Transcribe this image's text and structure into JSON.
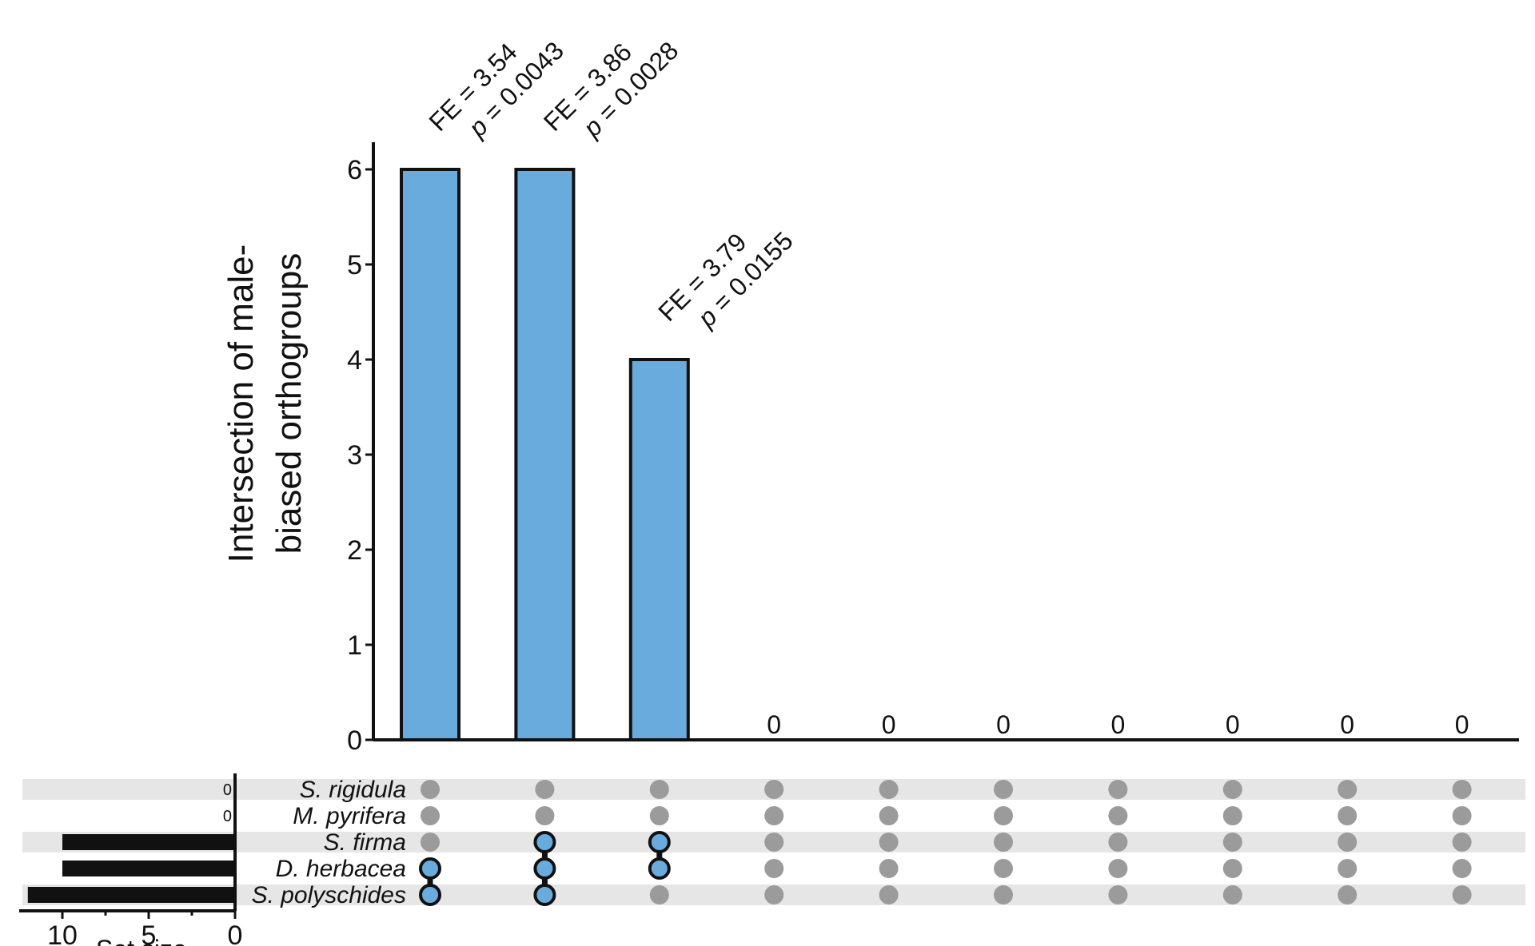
{
  "chart_data": {
    "type": "bar",
    "ylabel_lines": [
      "Intersection of male-",
      "biased orthogroups"
    ],
    "ylim": [
      0,
      6
    ],
    "yticks": [
      "0",
      "1",
      "2",
      "3",
      "4",
      "5",
      "6"
    ],
    "values": [
      6,
      6,
      4,
      0,
      0,
      0,
      0,
      0,
      0,
      0
    ],
    "zero_labels": [
      "",
      "",
      "",
      "0",
      "0",
      "0",
      "0",
      "0",
      "0",
      "0"
    ],
    "annotations": [
      {
        "col": 0,
        "fe": "FE = 3.54",
        "p_symbol": "p",
        "p_rest": " = 0.0043"
      },
      {
        "col": 1,
        "fe": "FE = 3.86",
        "p_symbol": "p",
        "p_rest": " = 0.0028"
      },
      {
        "col": 2,
        "fe": "FE = 3.79",
        "p_symbol": "p",
        "p_rest": " = 0.0155"
      }
    ],
    "sets": [
      "S. rigidula",
      "M. pyrifera",
      "S. firma",
      "D. herbacea",
      "S. polyschides"
    ],
    "set_sizes": [
      0,
      0,
      10,
      10,
      12
    ],
    "set_size_zero_labels": [
      "0",
      "0",
      "",
      "",
      ""
    ],
    "set_size_xticks": [
      "10",
      "5",
      "0"
    ],
    "set_size_xlim": [
      12.5,
      0
    ],
    "set_size_title": "Set size",
    "matrix_active": [
      [
        3,
        4
      ],
      [
        2,
        3,
        4
      ],
      [
        2,
        3
      ],
      [],
      [],
      [],
      [],
      [],
      [],
      []
    ],
    "colors": {
      "bar": "#6aabde",
      "active_dot": "#6aabde",
      "inactive_dot": "#9b9b9b",
      "band": "#e6e6e6",
      "ink": "#111111"
    }
  }
}
